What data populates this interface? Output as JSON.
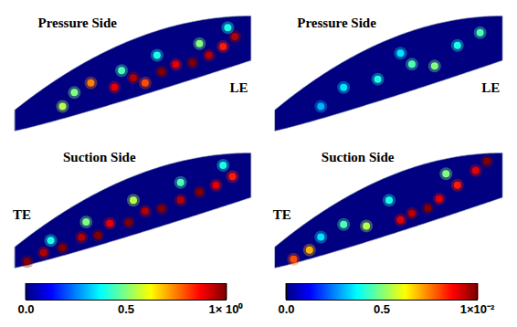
{
  "chart_data": [
    {
      "type": "heatmap",
      "panels": [
        {
          "title": "Pressure Side",
          "annotation": "LE",
          "cells": [
            [
              0.32,
              0.55,
              0.75
            ],
            [
              0.42,
              0.3,
              0.9
            ],
            [
              0.5,
              0.35,
              0.95
            ],
            [
              0.55,
              0.2,
              0.8
            ],
            [
              0.62,
              0.3,
              1.0
            ],
            [
              0.68,
              0.35,
              0.9
            ],
            [
              0.75,
              0.3,
              1.0
            ],
            [
              0.82,
              0.35,
              0.95
            ],
            [
              0.88,
              0.45,
              0.85
            ],
            [
              0.93,
              0.6,
              0.95
            ],
            [
              0.2,
              0.3,
              0.55
            ],
            [
              0.25,
              0.5,
              0.5
            ],
            [
              0.45,
              0.55,
              0.45
            ],
            [
              0.6,
              0.6,
              0.4
            ],
            [
              0.78,
              0.6,
              0.5
            ],
            [
              0.9,
              0.8,
              0.4
            ]
          ]
        },
        {
          "title": "Suction Side",
          "annotation": "TE",
          "cells": [
            [
              0.05,
              0.15,
              1.0
            ],
            [
              0.12,
              0.25,
              0.95
            ],
            [
              0.2,
              0.2,
              1.0
            ],
            [
              0.28,
              0.28,
              0.95
            ],
            [
              0.35,
              0.2,
              1.0
            ],
            [
              0.4,
              0.35,
              0.9
            ],
            [
              0.48,
              0.25,
              1.0
            ],
            [
              0.55,
              0.35,
              0.95
            ],
            [
              0.62,
              0.3,
              1.0
            ],
            [
              0.7,
              0.35,
              0.95
            ],
            [
              0.78,
              0.4,
              1.0
            ],
            [
              0.85,
              0.45,
              0.9
            ],
            [
              0.92,
              0.55,
              0.85
            ],
            [
              0.3,
              0.55,
              0.5
            ],
            [
              0.5,
              0.6,
              0.55
            ],
            [
              0.7,
              0.65,
              0.45
            ],
            [
              0.15,
              0.5,
              0.4
            ],
            [
              0.88,
              0.8,
              0.4
            ]
          ]
        }
      ],
      "colorbar": {
        "range": [
          0,
          1
        ],
        "ticks": [
          {
            "value": 0,
            "label": "0.0"
          },
          0.5,
          {
            "value": 1,
            "label": "1× 10⁰"
          }
        ]
      }
    },
    {
      "type": "heatmap",
      "panels": [
        {
          "title": "Pressure Side",
          "annotation": "LE",
          "cells": [
            [
              0.3,
              0.5,
              0.35
            ],
            [
              0.45,
              0.4,
              0.4
            ],
            [
              0.6,
              0.45,
              0.45
            ],
            [
              0.7,
              0.3,
              0.5
            ],
            [
              0.8,
              0.55,
              0.4
            ],
            [
              0.9,
              0.7,
              0.45
            ],
            [
              0.2,
              0.3,
              0.3
            ],
            [
              0.55,
              0.7,
              0.35
            ]
          ]
        },
        {
          "title": "Suction Side",
          "annotation": "TE",
          "cells": [
            [
              0.08,
              0.15,
              0.8
            ],
            [
              0.15,
              0.25,
              0.7
            ],
            [
              0.55,
              0.2,
              0.9
            ],
            [
              0.6,
              0.25,
              0.95
            ],
            [
              0.67,
              0.25,
              1.0
            ],
            [
              0.72,
              0.35,
              0.9
            ],
            [
              0.8,
              0.5,
              0.85
            ],
            [
              0.88,
              0.7,
              0.9
            ],
            [
              0.93,
              0.85,
              1.0
            ],
            [
              0.4,
              0.3,
              0.55
            ],
            [
              0.3,
              0.5,
              0.45
            ],
            [
              0.5,
              0.6,
              0.4
            ],
            [
              0.75,
              0.75,
              0.5
            ],
            [
              0.2,
              0.45,
              0.35
            ]
          ]
        }
      ],
      "colorbar": {
        "range": [
          0,
          1
        ],
        "ticks": [
          {
            "value": 0,
            "label": "0.0"
          },
          0.5,
          {
            "value": 1,
            "label": "1×10⁻²"
          }
        ]
      }
    }
  ]
}
